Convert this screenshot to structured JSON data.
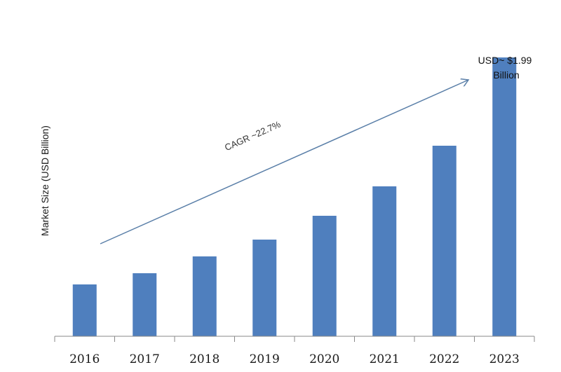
{
  "chart_data": {
    "type": "bar",
    "categories": [
      "2016",
      "2017",
      "2018",
      "2019",
      "2020",
      "2021",
      "2022",
      "2023"
    ],
    "values": [
      0.37,
      0.45,
      0.57,
      0.69,
      0.86,
      1.07,
      1.36,
      1.99
    ],
    "title": "",
    "xlabel": "",
    "ylabel": "Market Size (USD Billion)",
    "ylim": [
      0,
      2.2
    ],
    "grid": false,
    "legend": "none",
    "bar_color": "#4f7fbe",
    "annotations": {
      "cagr": "CAGR ~22.7%",
      "last_value_line1": "USD~ $1.99",
      "last_value_line2": "Billion"
    }
  }
}
